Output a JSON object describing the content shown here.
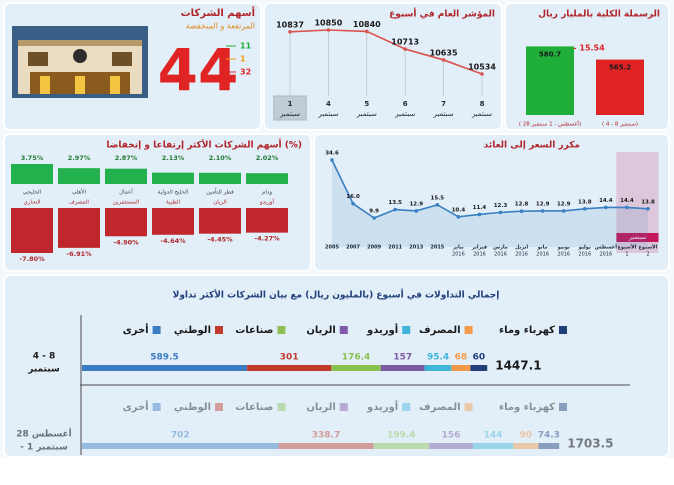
{
  "stocks_panel": {
    "title": "أسهم الشركات",
    "subtitle": "المرتفعة و المنخفضة",
    "total": 44,
    "counts": [
      {
        "value": 11,
        "color": "#1fae3a"
      },
      {
        "value": 1,
        "color": "#f39c12"
      },
      {
        "value": 32,
        "color": "#e02424"
      }
    ]
  },
  "chart_data": [
    {
      "type": "bar",
      "title": "الرسملة الكلية بالمليار ريال",
      "categories": [
        "( 28 أغسطس - 1 سبتمبر)",
        "( 4 - 8 سبتمبر)"
      ],
      "values": [
        580.7,
        565.2
      ],
      "colors": [
        "#1fae3a",
        "#e02424"
      ],
      "ylim": [
        500,
        600
      ],
      "annotation": "- 15.54"
    },
    {
      "type": "line",
      "title": "المؤشر العام في أسبوع",
      "categories": [
        [
          "1",
          "سبتمبر"
        ],
        [
          "4",
          "سبتمبر"
        ],
        [
          "5",
          "سبتمبر"
        ],
        [
          "6",
          "سبتمبر"
        ],
        [
          "7",
          "سبتمبر"
        ],
        [
          "8",
          "سبتمبر"
        ]
      ],
      "values": [
        10837,
        10850,
        10840,
        10713,
        10635,
        10534
      ],
      "color": "#d9534f",
      "highlight": {
        "from": 0,
        "to": 0,
        "color": "#9aa4ad"
      }
    },
    {
      "type": "diverging_bar",
      "title": "أسهم الشركات الأكثر إرتفاعا و إنخفاضا (%)",
      "groups": [
        {
          "categories": [
            "الخليجي",
            "الأهلي",
            "أعمال",
            "الخليج الدولية",
            "قطر للتأمين",
            "ودام"
          ],
          "values": [
            3.75,
            2.97,
            2.87,
            2.13,
            2.1,
            2.02
          ],
          "value_labels": [
            "3.75%",
            "2.97%",
            "2.87%",
            "2.13%",
            "2.10%",
            "2.02%"
          ],
          "color": "#22b14c"
        },
        {
          "categories": [
            "التجاري",
            "المصرف",
            "المستثمرين",
            "الطبية",
            "الريان",
            "أوريدو"
          ],
          "values": [
            -7.8,
            -6.91,
            -4.9,
            -4.64,
            -4.45,
            -4.27
          ],
          "value_labels": [
            "-7.80%",
            "-6.91%",
            "-4.90%",
            "-4.64%",
            "-4.45%",
            "-4.27%"
          ],
          "color": "#c0272d"
        }
      ]
    },
    {
      "type": "line",
      "title": "مكرر السعر إلى العائد",
      "categories": [
        [
          "2005"
        ],
        [
          "2007"
        ],
        [
          "2009"
        ],
        [
          "2011"
        ],
        [
          "2013"
        ],
        [
          "2015"
        ],
        [
          "يناير",
          "2016"
        ],
        [
          "فبراير",
          "2016"
        ],
        [
          "مارس",
          "2016"
        ],
        [
          "ابريل",
          "2016"
        ],
        [
          "مايو",
          "2016"
        ],
        [
          "يونيو",
          "2016"
        ],
        [
          "يوليو",
          "2016"
        ],
        [
          "أغسطس",
          "2016"
        ],
        [
          "الأسبوع",
          "1"
        ],
        [
          "الأسبوع",
          "2"
        ]
      ],
      "values": [
        34.6,
        16,
        9.9,
        13.5,
        12.9,
        15.5,
        10.4,
        11.4,
        12.3,
        12.8,
        12.9,
        12.9,
        13.8,
        14.4,
        14.4,
        13.8
      ],
      "value_labels": [
        "34.6",
        "16.0",
        "9.9",
        "13.5",
        "12.9",
        "15.5",
        "10.4",
        "11.4",
        "12.3",
        "12.8",
        "12.9",
        "12.9",
        "13.8",
        "14.4",
        "14.4",
        "13.8"
      ],
      "color": "#3a7fc1",
      "fill": true,
      "highlight": {
        "from": 14,
        "to": 15,
        "color": "#c2185b",
        "label": "سبتمبر"
      }
    },
    {
      "type": "stacked_hbar",
      "title": "إجمالي التداولات في أسبوع (بالمليون ريال) مع بيان الشركات الأكثر تداولا",
      "categories": [
        [
          "4 - 8",
          "سبتمبر"
        ],
        [
          "28 أغسطس",
          "- 1 سبتمبر"
        ]
      ],
      "totals": [
        1447.1,
        1703.5
      ],
      "series": [
        {
          "name": "كهرباء وماء",
          "color": "#1f3f7a",
          "values": [
            60,
            74.3
          ]
        },
        {
          "name": "المصرف",
          "color": "#f39a4a",
          "values": [
            68,
            90
          ]
        },
        {
          "name": "أوريدو",
          "color": "#3fb6d9",
          "values": [
            95.4,
            144
          ]
        },
        {
          "name": "الريان",
          "color": "#7d5aa6",
          "values": [
            157,
            156
          ]
        },
        {
          "name": "صناعات",
          "color": "#8cc152",
          "values": [
            176.4,
            199.4
          ]
        },
        {
          "name": "الوطني",
          "color": "#c0392b",
          "values": [
            301,
            338.7
          ]
        },
        {
          "name": "أخرى",
          "color": "#3b7dc4",
          "values": [
            589.5,
            702
          ]
        }
      ]
    }
  ]
}
